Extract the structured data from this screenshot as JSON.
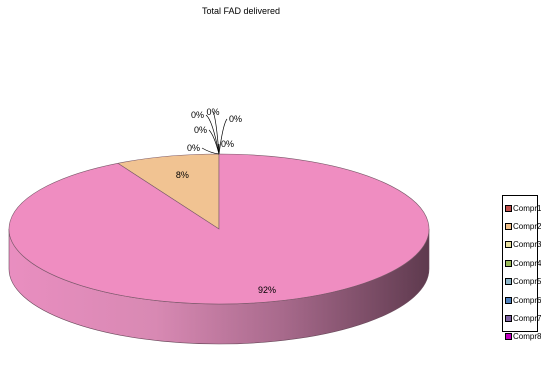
{
  "chart_data": {
    "type": "pie",
    "title": "Total FAD delivered",
    "categories": [
      "Compr1",
      "Compr2",
      "Compr3",
      "Compr4",
      "Compr5",
      "Compr6",
      "Compr7",
      "Compr8"
    ],
    "values": [
      0,
      8,
      0,
      0,
      0,
      0,
      0,
      92
    ],
    "data_labels": [
      "0%",
      "8%",
      "0%",
      "0%",
      "0%",
      "0%",
      "0%",
      "92%"
    ],
    "colors": [
      "#c0504d",
      "#f0c08a",
      "#e8e0a0",
      "#9bbb59",
      "#8db4c8",
      "#4f81bd",
      "#8064a2",
      "#c000c0"
    ],
    "slice_colors": {
      "Compr2": "#f1c392",
      "Compr8": "#ef8dc1"
    },
    "legend_position": "right",
    "style": "3d"
  }
}
